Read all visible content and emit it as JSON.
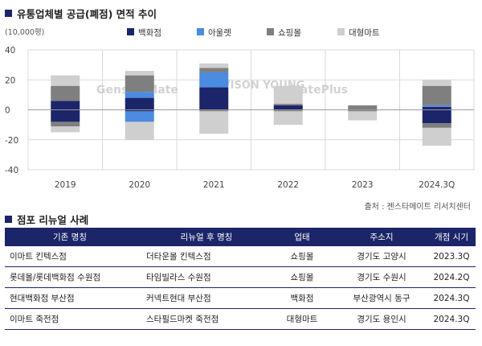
{
  "chart_title": "유통업체별 공급(폐점) 면적 추이",
  "table_title": "점포 리뉴얼 사례",
  "source": "출처 : 젠스타메이트 리서치센터",
  "watermarks": [
    "GenstarMate",
    "SAVISON YOUNG",
    "MatePlus"
  ],
  "colors": {
    "navy": "#1c2569",
    "blue": "#4b8be0",
    "darkgray": "#7f7f7f",
    "lightgray": "#cfcfcf",
    "accent": "#1c2569"
  },
  "chart_data": {
    "type": "bar",
    "stacked": true,
    "unit_label": "(10,000평)",
    "title": "유통업체별 공급(폐점) 면적 추이",
    "categories": [
      "2019",
      "2020",
      "2021",
      "2022",
      "2023",
      "2024.3Q"
    ],
    "ylim": [
      -40,
      40
    ],
    "yticks": [
      40,
      20,
      0,
      -20,
      -40
    ],
    "grid": true,
    "legend_position": "top",
    "series": [
      {
        "name": "백화점",
        "color": "#1c2569",
        "pos": [
          6,
          8,
          15,
          3,
          0,
          2
        ],
        "neg": [
          -8,
          -1,
          0,
          0,
          0,
          -9
        ]
      },
      {
        "name": "아울렛",
        "color": "#4b8be0",
        "pos": [
          0,
          4,
          10,
          0,
          0,
          1
        ],
        "neg": [
          0,
          -7,
          0,
          0,
          0,
          0
        ]
      },
      {
        "name": "쇼핑몰",
        "color": "#7f7f7f",
        "pos": [
          10,
          11,
          3,
          1,
          3,
          13
        ],
        "neg": [
          -3,
          0,
          -1,
          -1,
          -1,
          -3
        ]
      },
      {
        "name": "대형마트",
        "color": "#cfcfcf",
        "pos": [
          7,
          3,
          3,
          12,
          0,
          4
        ],
        "neg": [
          -4,
          -12,
          -15,
          -9,
          -6,
          -12
        ]
      }
    ]
  },
  "table": {
    "headers": [
      "기존 명칭",
      "리뉴얼 후 명칭",
      "업태",
      "주소지",
      "개점 시기"
    ],
    "rows": [
      [
        "이마트 킨텍스점",
        "더타운몰 킨텍스점",
        "쇼핑몰",
        "경기도 고양시",
        "2023.3Q"
      ],
      [
        "롯데몰/롯데백화점 수원점",
        "타임빌라스 수원점",
        "쇼핑몰",
        "경기도 수원시",
        "2024.2Q"
      ],
      [
        "현대백화점 부산점",
        "커넥트현대 부산점",
        "백화점",
        "부산광역시 동구",
        "2024.3Q"
      ],
      [
        "이마트 죽전점",
        "스타필드마켓 죽전점",
        "대형마트",
        "경기도 용인시",
        "2024.3Q"
      ]
    ]
  }
}
